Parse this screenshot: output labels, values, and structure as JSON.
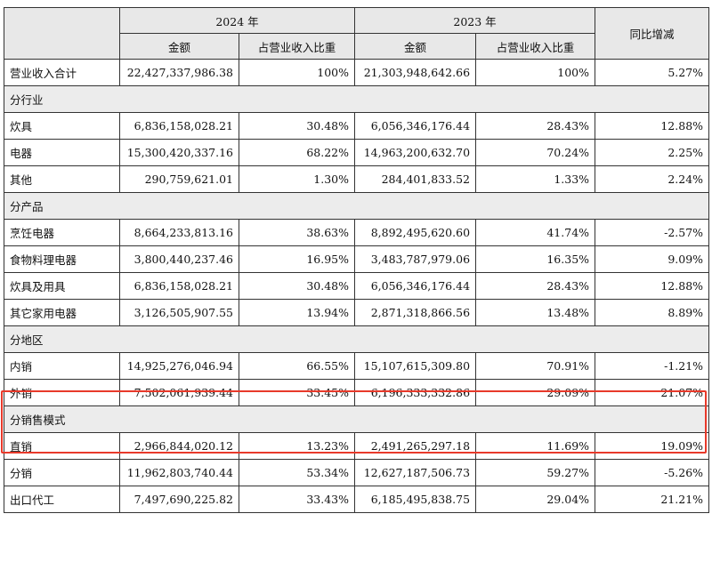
{
  "header": {
    "year_2024": "2024 年",
    "year_2023": "2023 年",
    "yoy": "同比增减",
    "amount": "金额",
    "share": "占营业收入比重"
  },
  "total": {
    "label": "营业收入合计",
    "amt_2024": "22,427,337,986.38",
    "pct_2024": "100%",
    "amt_2023": "21,303,948,642.66",
    "pct_2023": "100%",
    "yoy": "5.27%"
  },
  "sections": [
    {
      "title": "分行业",
      "rows": [
        {
          "label": "炊具",
          "amt_2024": "6,836,158,028.21",
          "pct_2024": "30.48%",
          "amt_2023": "6,056,346,176.44",
          "pct_2023": "28.43%",
          "yoy": "12.88%"
        },
        {
          "label": "电器",
          "amt_2024": "15,300,420,337.16",
          "pct_2024": "68.22%",
          "amt_2023": "14,963,200,632.70",
          "pct_2023": "70.24%",
          "yoy": "2.25%"
        },
        {
          "label": "其他",
          "amt_2024": "290,759,621.01",
          "pct_2024": "1.30%",
          "amt_2023": "284,401,833.52",
          "pct_2023": "1.33%",
          "yoy": "2.24%"
        }
      ]
    },
    {
      "title": "分产品",
      "rows": [
        {
          "label": "烹饪电器",
          "amt_2024": "8,664,233,813.16",
          "pct_2024": "38.63%",
          "amt_2023": "8,892,495,620.60",
          "pct_2023": "41.74%",
          "yoy": "-2.57%"
        },
        {
          "label": "食物料理电器",
          "amt_2024": "3,800,440,237.46",
          "pct_2024": "16.95%",
          "amt_2023": "3,483,787,979.06",
          "pct_2023": "16.35%",
          "yoy": "9.09%"
        },
        {
          "label": "炊具及用具",
          "amt_2024": "6,836,158,028.21",
          "pct_2024": "30.48%",
          "amt_2023": "6,056,346,176.44",
          "pct_2023": "28.43%",
          "yoy": "12.88%"
        },
        {
          "label": "其它家用电器",
          "amt_2024": "3,126,505,907.55",
          "pct_2024": "13.94%",
          "amt_2023": "2,871,318,866.56",
          "pct_2023": "13.48%",
          "yoy": "8.89%"
        }
      ]
    },
    {
      "title": "分地区",
      "rows": [
        {
          "label": "内销",
          "amt_2024": "14,925,276,046.94",
          "pct_2024": "66.55%",
          "amt_2023": "15,107,615,309.80",
          "pct_2023": "70.91%",
          "yoy": "-1.21%"
        },
        {
          "label": "外销",
          "amt_2024": "7,502,061,939.44",
          "pct_2024": "33.45%",
          "amt_2023": "6,196,333,332.86",
          "pct_2023": "29.09%",
          "yoy": "21.07%"
        }
      ]
    },
    {
      "title": "分销售模式",
      "rows": [
        {
          "label": "直销",
          "amt_2024": "2,966,844,020.12",
          "pct_2024": "13.23%",
          "amt_2023": "2,491,265,297.18",
          "pct_2023": "11.69%",
          "yoy": "19.09%"
        },
        {
          "label": "分销",
          "amt_2024": "11,962,803,740.44",
          "pct_2024": "53.34%",
          "amt_2023": "12,627,187,506.73",
          "pct_2023": "59.27%",
          "yoy": "-5.26%"
        },
        {
          "label": "出口代工",
          "amt_2024": "7,497,690,225.82",
          "pct_2024": "33.43%",
          "amt_2023": "6,185,495,838.75",
          "pct_2023": "29.04%",
          "yoy": "21.21%"
        }
      ]
    }
  ],
  "highlight_color": "#e8392a"
}
